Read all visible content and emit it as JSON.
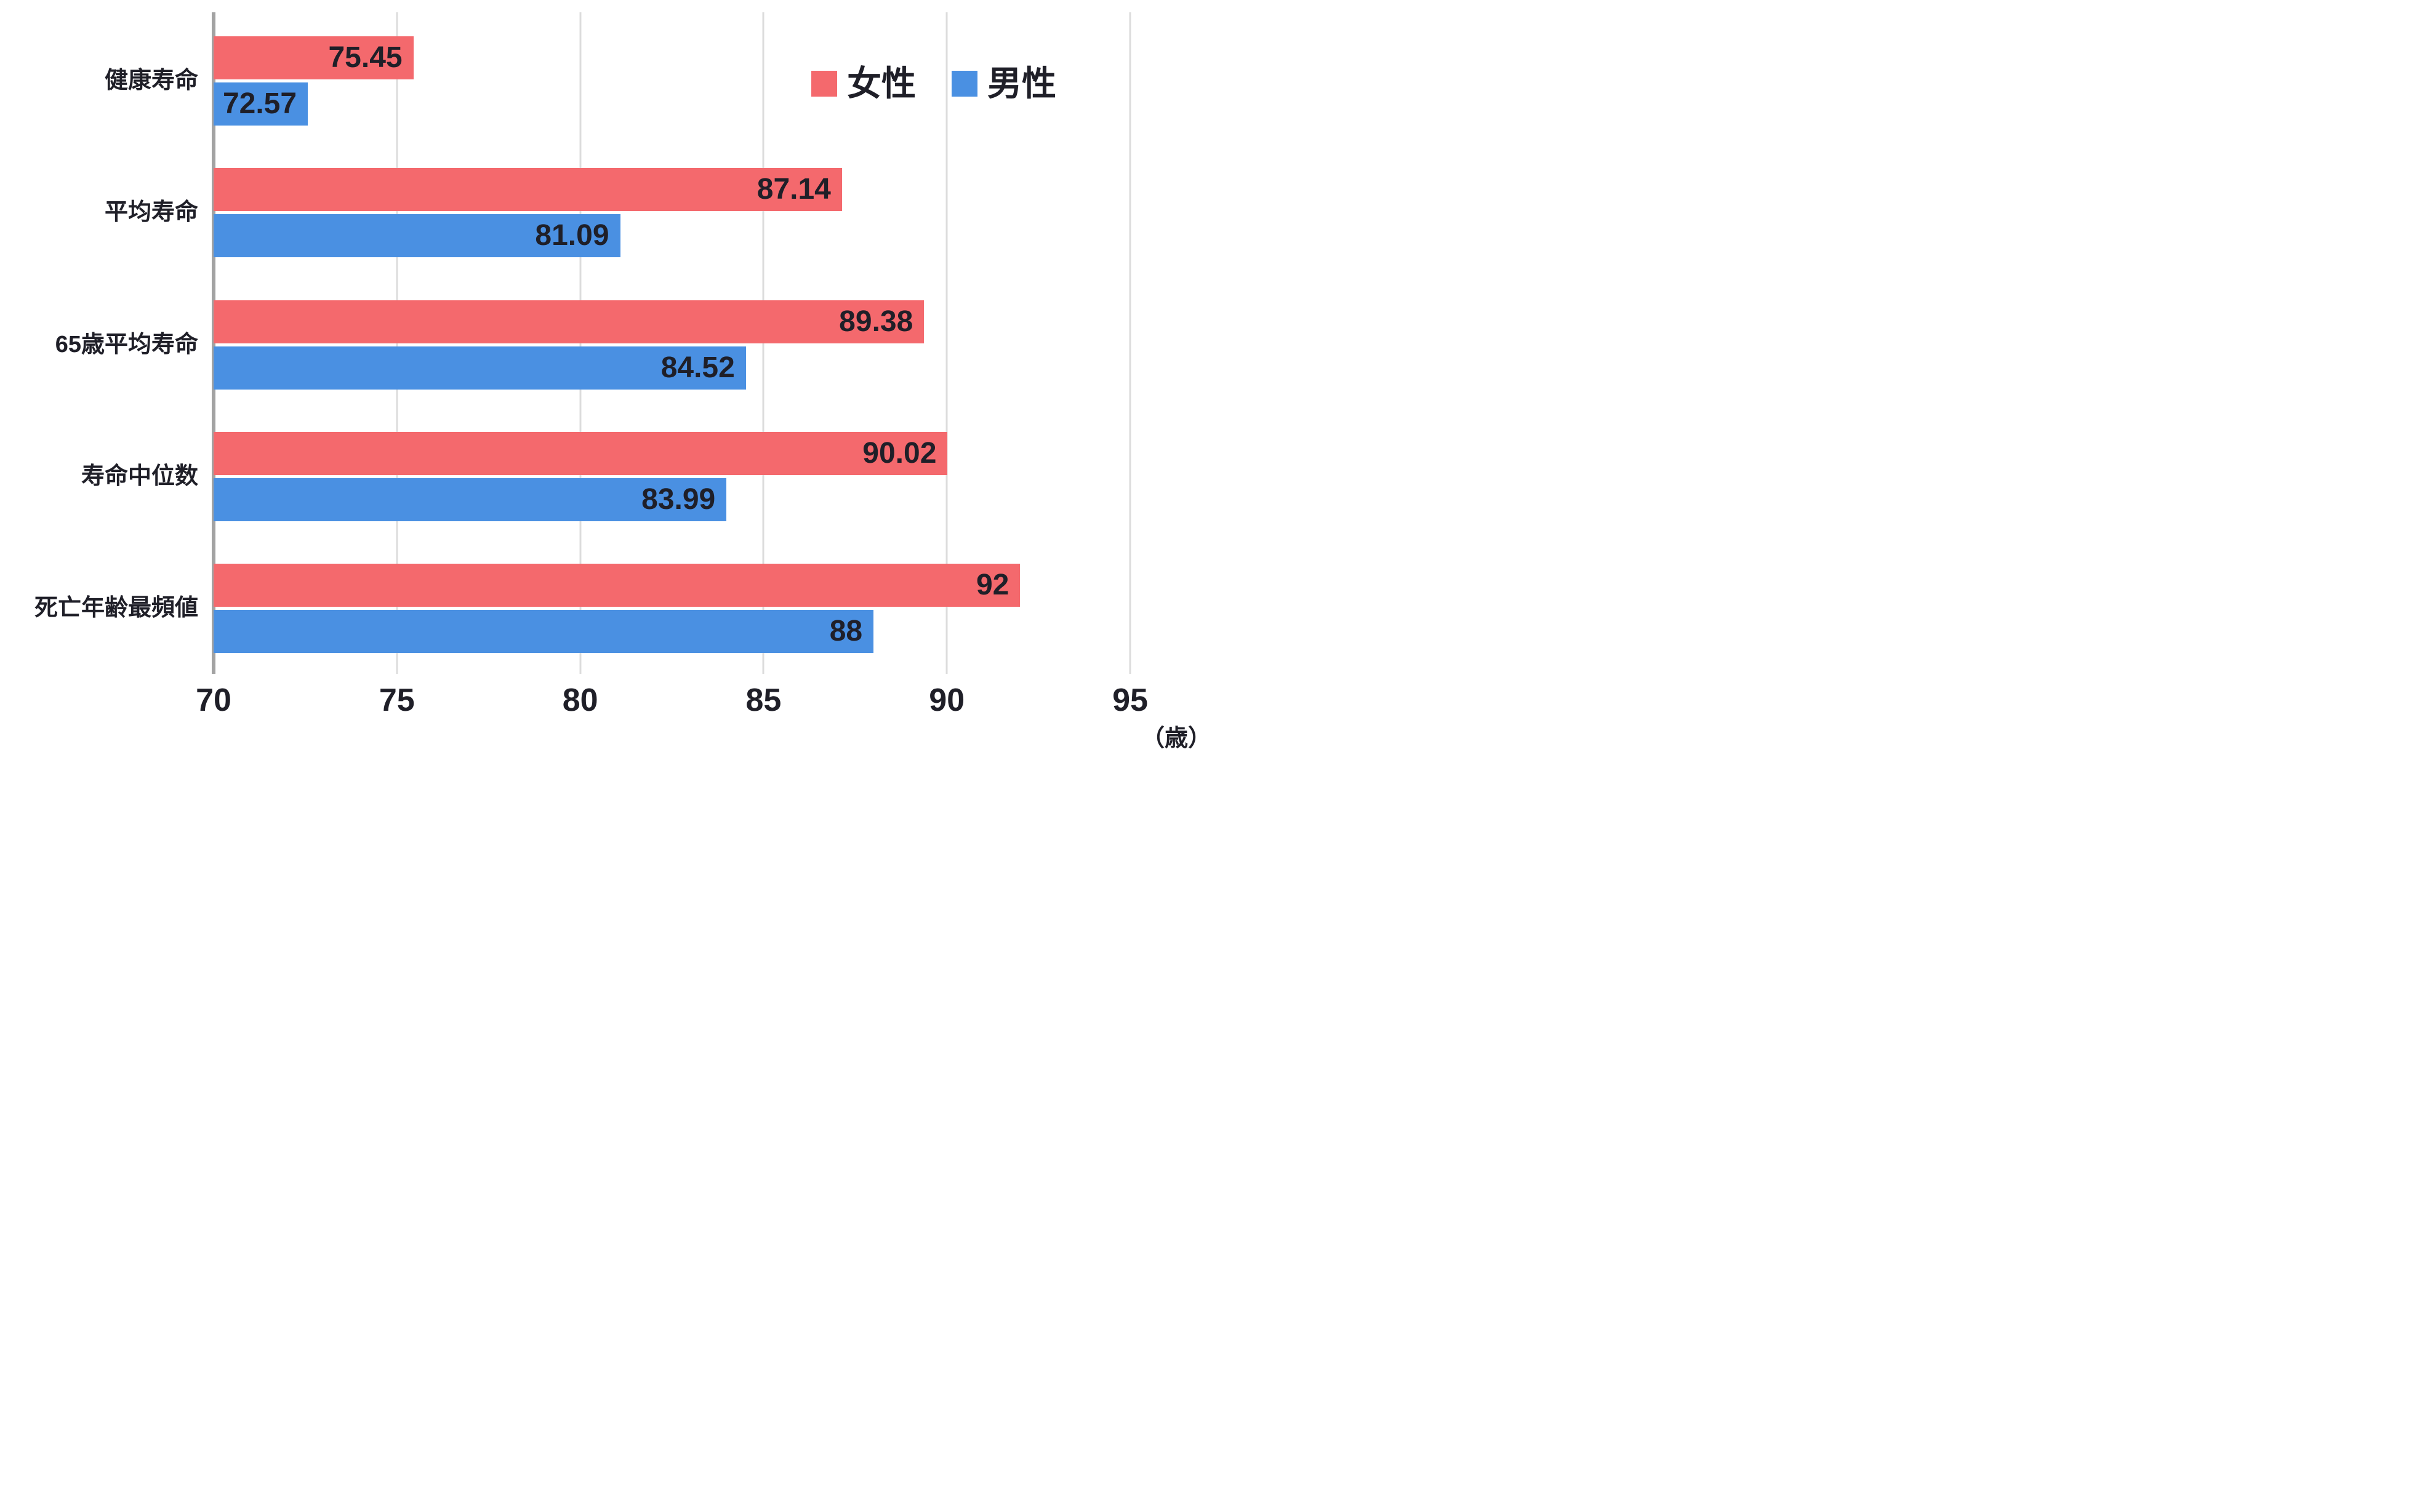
{
  "chart_data": {
    "type": "bar",
    "orientation": "horizontal",
    "title": "",
    "categories": [
      "健康寿命",
      "平均寿命",
      "65歳平均寿命",
      "寿命中位数",
      "死亡年齢最頻値"
    ],
    "series": [
      {
        "key": "female",
        "name": "女性",
        "color": "#F4696D",
        "values": [
          75.45,
          87.14,
          89.38,
          90.02,
          92
        ],
        "labels": [
          "75.45",
          "87.14",
          "89.38",
          "90.02",
          "92"
        ]
      },
      {
        "key": "male",
        "name": "男性",
        "color": "#4A90E2",
        "values": [
          72.57,
          81.09,
          84.52,
          83.99,
          88
        ],
        "labels": [
          "72.57",
          "81.09",
          "84.52",
          "83.99",
          "88"
        ]
      }
    ],
    "x_ticks": [
      "70",
      "75",
      "80",
      "85",
      "90",
      "95"
    ],
    "x_tick_values": [
      70,
      75,
      80,
      85,
      90,
      95
    ],
    "xlim": [
      70,
      97.35
    ],
    "unit_label": "（歳）",
    "grid": true,
    "legend_position": "top-right",
    "style": {
      "text_color": "#1F1F28",
      "grid_color": "#DCDCDC",
      "axis_color": "#A3A3A3",
      "background": "#FFFFFF"
    }
  }
}
